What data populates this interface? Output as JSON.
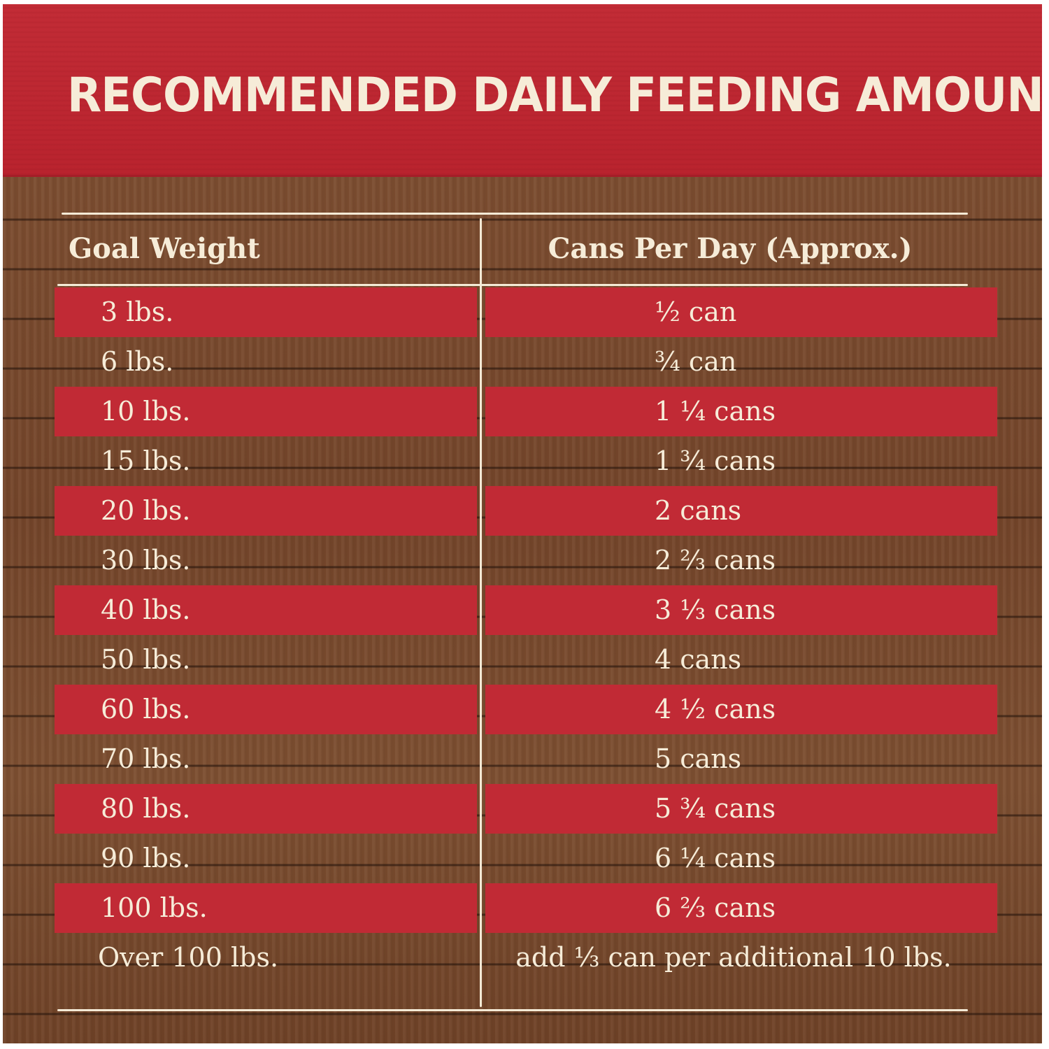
{
  "colors": {
    "header_red": "#c22c36",
    "stripe_red": "#c12a35",
    "wood_brown": "#7a4a2e",
    "cream_text": "#f6ecd8"
  },
  "title": "RECOMMENDED DAILY FEEDING AMOUNTS:",
  "table": {
    "headers": {
      "weight": "Goal Weight",
      "cans": "Cans Per Day (Approx.)"
    },
    "rows": [
      {
        "weight": "3 lbs.",
        "cans": "½ can"
      },
      {
        "weight": "6 lbs.",
        "cans": "¾ can"
      },
      {
        "weight": "10 lbs.",
        "cans": "1 ¼ cans"
      },
      {
        "weight": "15 lbs.",
        "cans": "1 ¾ cans"
      },
      {
        "weight": "20 lbs.",
        "cans": "2 cans"
      },
      {
        "weight": "30 lbs.",
        "cans": "2 ⅔ cans"
      },
      {
        "weight": "40 lbs.",
        "cans": "3 ⅓ cans"
      },
      {
        "weight": "50 lbs.",
        "cans": "4 cans"
      },
      {
        "weight": "60 lbs.",
        "cans": "4 ½ cans"
      },
      {
        "weight": "70 lbs.",
        "cans": "5 cans"
      },
      {
        "weight": "80 lbs.",
        "cans": "5 ¾ cans"
      },
      {
        "weight": "90 lbs.",
        "cans": "6 ¼ cans"
      },
      {
        "weight": "100 lbs.",
        "cans": "6 ⅔ cans"
      },
      {
        "weight": "Over 100 lbs.",
        "cans": "add ⅓ can per additional 10 lbs."
      }
    ]
  }
}
